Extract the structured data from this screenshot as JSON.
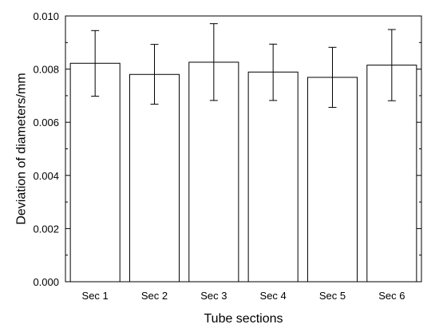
{
  "chart_data": {
    "type": "bar",
    "categories": [
      "Sec 1",
      "Sec 2",
      "Sec 3",
      "Sec 4",
      "Sec 5",
      "Sec 6"
    ],
    "values": [
      0.00822,
      0.0078,
      0.00826,
      0.00789,
      0.00769,
      0.00815
    ],
    "error_low": [
      0.00698,
      0.00668,
      0.00682,
      0.00682,
      0.00656,
      0.00681
    ],
    "error_high": [
      0.00945,
      0.00893,
      0.00971,
      0.00894,
      0.00882,
      0.00949
    ],
    "xlabel": "Tube sections",
    "ylabel": "Deviation of diameters/mm",
    "ylim": [
      0,
      0.01
    ],
    "yticks": [
      {
        "value": 0,
        "label": "0.000"
      },
      {
        "value": 0.002,
        "label": "0.002"
      },
      {
        "value": 0.004,
        "label": "0.004"
      },
      {
        "value": 0.006,
        "label": "0.006"
      },
      {
        "value": 0.008,
        "label": "0.008"
      },
      {
        "value": 0.01,
        "label": "0.010"
      }
    ],
    "grid": false,
    "colors": {
      "bar_fill": "#ffffff",
      "bar_stroke": "#000000",
      "error_bar": "#000000"
    }
  }
}
